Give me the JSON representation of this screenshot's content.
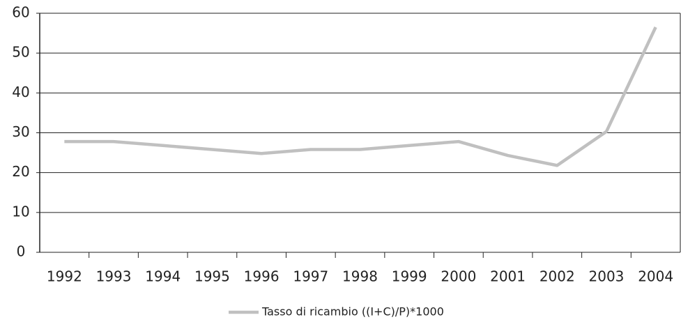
{
  "chart_data": {
    "type": "line",
    "categories": [
      "1992",
      "1993",
      "1994",
      "1995",
      "1996",
      "1997",
      "1998",
      "1999",
      "2000",
      "2001",
      "2002",
      "2003",
      "2004"
    ],
    "series": [
      {
        "name": "Tasso di ricambio ((I+C)/P)*1000",
        "color": "#c0c0c0",
        "values": [
          27.8,
          27.8,
          26.8,
          25.8,
          24.8,
          25.8,
          25.8,
          26.8,
          27.8,
          24.3,
          21.8,
          30.3,
          56.5
        ]
      }
    ],
    "ylim": [
      0,
      60
    ],
    "yticks": [
      0,
      10,
      20,
      30,
      40,
      50,
      60
    ],
    "grid": true,
    "legend": "bottom"
  }
}
